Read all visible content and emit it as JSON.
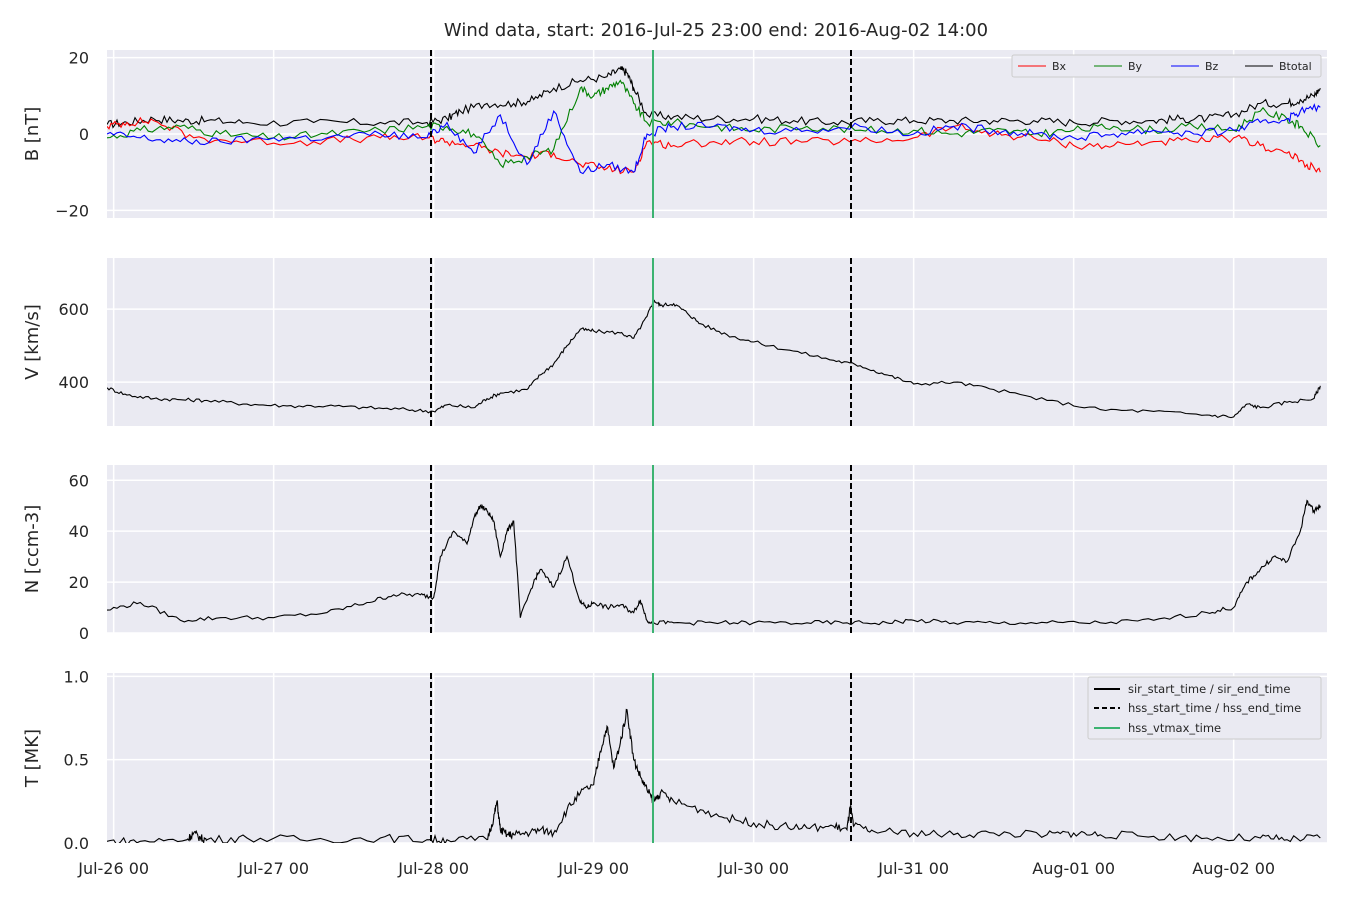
{
  "title": "Wind data, start: 2016-Jul-25 23:00  end: 2016-Aug-02 14:00",
  "colors": {
    "panel_bg": "#eaeaf2",
    "grid": "#ffffff",
    "bx": "#ff0000",
    "by": "#008000",
    "bz": "#0000ff",
    "btotal": "#000000",
    "vtmax": "#3cb371",
    "text": "#262626"
  },
  "x_axis": {
    "start_hours": -1,
    "end_hours": 182,
    "ticks": [
      {
        "label": "Jul-26 00",
        "hours": 0
      },
      {
        "label": "Jul-27 00",
        "hours": 24
      },
      {
        "label": "Jul-28 00",
        "hours": 48
      },
      {
        "label": "Jul-29 00",
        "hours": 72
      },
      {
        "label": "Jul-30 00",
        "hours": 96
      },
      {
        "label": "Jul-31 00",
        "hours": 120
      },
      {
        "label": "Aug-01 00",
        "hours": 144
      },
      {
        "label": "Aug-02 00",
        "hours": 168
      }
    ]
  },
  "markers": {
    "hss_start_hours": 47.6,
    "hss_end_hours": 110.6,
    "hss_vtmax_hours": 80.9
  },
  "legend_b": [
    "Bx",
    "By",
    "Bz",
    "Btotal"
  ],
  "legend_t": [
    "sir_start_time / sir_end_time",
    "hss_start_time / hss_end_time",
    "hss_vtmax_time"
  ],
  "chart_data": [
    {
      "type": "line",
      "ylabel": "B [nT]",
      "ylim": [
        -22,
        22
      ],
      "yticks": [
        {
          "label": "20",
          "v": 20
        },
        {
          "label": "0",
          "v": 0
        },
        {
          "label": "−20",
          "v": -20
        }
      ],
      "series": [
        {
          "name": "Btotal",
          "x": [
            -1,
            2,
            6,
            10,
            14,
            20,
            30,
            40,
            47,
            50,
            52,
            56,
            60,
            63,
            66,
            70,
            74,
            76,
            77,
            78,
            80,
            84,
            90,
            96,
            102,
            108,
            114,
            120,
            126,
            132,
            138,
            144,
            150,
            156,
            160,
            164,
            168,
            172,
            176,
            178,
            180,
            181
          ],
          "y": [
            2.5,
            3,
            4,
            3.5,
            3.5,
            3,
            3,
            3,
            3,
            4,
            6,
            8,
            8,
            9,
            12,
            14,
            15,
            17,
            16,
            12,
            5,
            4.5,
            4,
            4,
            3.5,
            3,
            3.5,
            3.5,
            3.5,
            3.5,
            3.5,
            3,
            3.5,
            3.5,
            4,
            4,
            5,
            8,
            8,
            9,
            10,
            12
          ]
        },
        {
          "name": "Bx",
          "x": [
            -1,
            2,
            6,
            12,
            20,
            30,
            40,
            47,
            50,
            54,
            58,
            62,
            66,
            70,
            74,
            78,
            80,
            84,
            90,
            96,
            104,
            112,
            120,
            126,
            132,
            138,
            144,
            150,
            156,
            162,
            168,
            172,
            176,
            179,
            181
          ],
          "y": [
            2,
            3,
            3.5,
            -1,
            -2,
            -2,
            -1,
            -1,
            -2,
            -3,
            -5,
            -6,
            -5,
            -8,
            -9,
            -10,
            -2,
            -3,
            -2,
            -2,
            -2,
            -2,
            -1,
            2,
            0,
            -1,
            -3,
            -3,
            -2,
            -2,
            -1,
            -3,
            -5,
            -8,
            -10
          ]
        },
        {
          "name": "By",
          "x": [
            -1,
            4,
            10,
            16,
            24,
            32,
            40,
            47,
            50,
            54,
            58,
            62,
            66,
            70,
            72,
            74,
            76,
            78,
            80,
            84,
            90,
            96,
            104,
            112,
            120,
            126,
            132,
            138,
            144,
            150,
            156,
            162,
            168,
            172,
            176,
            178,
            181
          ],
          "y": [
            -1,
            1,
            2,
            0,
            -1,
            0,
            1,
            2,
            2,
            0,
            -8,
            -6,
            -4,
            12,
            10,
            12,
            14,
            8,
            3,
            3,
            2,
            1,
            2,
            1,
            1,
            0,
            1,
            0,
            1,
            2,
            1,
            2,
            1,
            6,
            4,
            2,
            -3
          ]
        },
        {
          "name": "Bz",
          "x": [
            -1,
            4,
            10,
            16,
            24,
            32,
            40,
            47,
            50,
            54,
            58,
            62,
            66,
            70,
            74,
            78,
            80,
            84,
            90,
            96,
            104,
            112,
            120,
            126,
            132,
            138,
            144,
            150,
            156,
            162,
            168,
            172,
            176,
            178,
            181
          ],
          "y": [
            0,
            -1,
            -2,
            -2,
            -1,
            -1,
            0,
            -1,
            3,
            -5,
            5,
            -8,
            6,
            -10,
            -8,
            -10,
            0,
            2,
            2,
            1,
            1,
            2,
            0,
            2,
            1,
            0,
            -1,
            0,
            1,
            0,
            1,
            3,
            4,
            6,
            7
          ]
        }
      ]
    },
    {
      "type": "line",
      "ylabel": "V [km/s]",
      "ylim": [
        280,
        740
      ],
      "yticks": [
        {
          "label": "600",
          "v": 600
        },
        {
          "label": "400",
          "v": 400
        }
      ],
      "series": [
        {
          "name": "V",
          "x": [
            -1,
            2,
            6,
            10,
            14,
            20,
            26,
            32,
            38,
            44,
            48,
            50,
            54,
            56,
            58,
            62,
            64,
            66,
            68,
            70,
            72,
            76,
            78,
            80,
            81,
            82,
            84,
            86,
            88,
            92,
            96,
            102,
            108,
            112,
            116,
            120,
            126,
            132,
            140,
            148,
            156,
            164,
            168,
            170,
            172,
            176,
            180,
            181
          ],
          "y": [
            385,
            365,
            355,
            352,
            350,
            340,
            335,
            335,
            330,
            325,
            320,
            338,
            330,
            355,
            370,
            380,
            420,
            450,
            500,
            545,
            540,
            535,
            520,
            580,
            625,
            610,
            615,
            590,
            560,
            530,
            510,
            485,
            460,
            445,
            420,
            395,
            400,
            380,
            350,
            325,
            320,
            310,
            305,
            340,
            330,
            345,
            355,
            390
          ]
        }
      ]
    },
    {
      "type": "line",
      "ylabel": "N [ccm-3]",
      "ylim": [
        0,
        66
      ],
      "yticks": [
        {
          "label": "60",
          "v": 60
        },
        {
          "label": "40",
          "v": 40
        },
        {
          "label": "20",
          "v": 20
        },
        {
          "label": "0",
          "v": 0
        }
      ],
      "series": [
        {
          "name": "N",
          "x": [
            -1,
            4,
            10,
            16,
            24,
            32,
            38,
            42,
            46,
            48,
            49,
            51,
            53,
            54,
            55,
            56,
            57,
            58,
            59,
            60,
            61,
            63,
            64,
            66,
            68,
            70,
            71,
            72,
            74,
            76,
            78,
            79,
            80,
            81,
            84,
            90,
            96,
            104,
            110,
            116,
            120,
            126,
            132,
            140,
            148,
            156,
            164,
            168,
            170,
            172,
            174,
            176,
            178,
            179,
            180,
            181
          ],
          "y": [
            9,
            12,
            5,
            6,
            6,
            8,
            12,
            15,
            15,
            14,
            30,
            40,
            35,
            45,
            50,
            48,
            44,
            30,
            40,
            44,
            6,
            20,
            25,
            18,
            30,
            12,
            10,
            12,
            10,
            11,
            8,
            13,
            5,
            4,
            4,
            4,
            4,
            4,
            4,
            4,
            5,
            4,
            4,
            4,
            4,
            5,
            8,
            10,
            20,
            25,
            30,
            28,
            40,
            52,
            48,
            50
          ]
        }
      ]
    },
    {
      "type": "line",
      "ylabel": "T [MK]",
      "ylim": [
        0,
        1.02
      ],
      "yticks": [
        {
          "label": "1.0",
          "v": 1.0
        },
        {
          "label": "0.5",
          "v": 0.5
        },
        {
          "label": "0.0",
          "v": 0.0
        }
      ],
      "series": [
        {
          "name": "T",
          "x": [
            -1,
            4,
            11,
            12,
            13,
            14,
            20,
            30,
            40,
            47,
            50,
            56,
            57,
            57.5,
            58,
            59,
            60,
            62,
            64,
            66,
            68,
            70,
            72,
            73,
            74,
            75,
            76,
            77,
            78,
            79,
            80,
            81,
            82,
            84,
            88,
            92,
            96,
            100,
            104,
            108,
            110,
            110.5,
            111,
            114,
            120,
            126,
            132,
            140,
            144,
            148,
            156,
            164,
            172,
            176,
            181
          ],
          "y": [
            0.01,
            0.01,
            0.02,
            0.06,
            0.03,
            0.02,
            0.03,
            0.02,
            0.03,
            0.02,
            0.02,
            0.02,
            0.15,
            0.25,
            0.08,
            0.05,
            0.05,
            0.06,
            0.08,
            0.06,
            0.2,
            0.3,
            0.35,
            0.55,
            0.7,
            0.45,
            0.6,
            0.8,
            0.5,
            0.4,
            0.32,
            0.25,
            0.3,
            0.25,
            0.2,
            0.15,
            0.12,
            0.1,
            0.09,
            0.1,
            0.08,
            0.22,
            0.1,
            0.07,
            0.06,
            0.05,
            0.06,
            0.05,
            0.06,
            0.05,
            0.04,
            0.03,
            0.03,
            0.02,
            0.03
          ]
        }
      ]
    }
  ]
}
